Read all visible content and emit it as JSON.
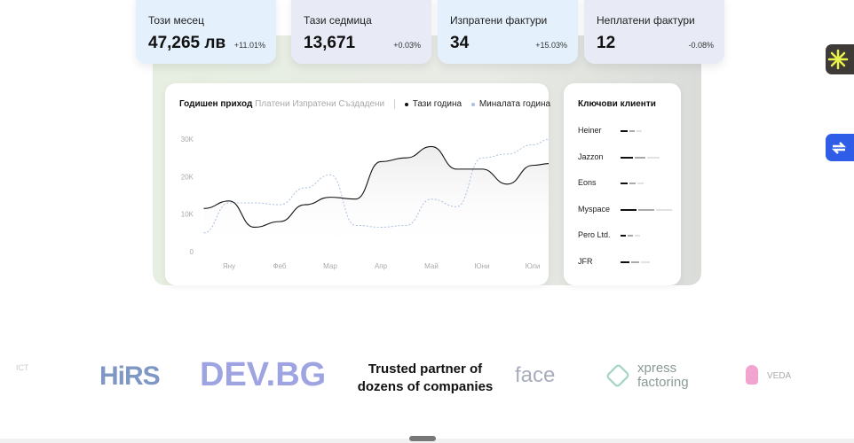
{
  "stats": [
    {
      "label": "Този месец",
      "value": "47,265 лв",
      "change": "+11.01%",
      "bg": "#e4f1fd"
    },
    {
      "label": "Тази седмица",
      "value": "13,671",
      "change": "+0.03%",
      "bg": "#e8ebf5"
    },
    {
      "label": "Изпратени фактури",
      "value": "34",
      "change": "+15.03%",
      "bg": "#e4f1fd"
    },
    {
      "label": "Неплатени фактури",
      "value": "12",
      "change": "-0.08%",
      "bg": "#e8ebf5"
    }
  ],
  "chart": {
    "title": "Годишен приход",
    "filters": [
      "Платени",
      "Изпратени",
      "Създадени"
    ],
    "legend": [
      {
        "label": "Тази година",
        "color": "#111111"
      },
      {
        "label": "Миналата година",
        "color": "#a9c0e0"
      }
    ]
  },
  "chart_data": {
    "type": "line",
    "categories": [
      "Яну",
      "Феб",
      "Мар",
      "Апр",
      "Май",
      "Юни",
      "Юли"
    ],
    "yticks": [
      "0",
      "10K",
      "20K",
      "30K"
    ],
    "ylim": [
      0,
      30
    ],
    "x": [
      -0.5,
      0,
      0.5,
      1,
      1.5,
      2,
      2.5,
      3,
      3.5,
      4,
      4.5,
      5,
      5.5,
      6,
      6.35
    ],
    "series": [
      {
        "name": "Тази година",
        "values": [
          11.5,
          13.5,
          6.5,
          8,
          12.5,
          14.5,
          14,
          24,
          25,
          28,
          22,
          22,
          18,
          23,
          23.5
        ]
      },
      {
        "name": "Миналата година",
        "values": [
          5,
          13,
          13,
          12.5,
          17,
          20.5,
          7,
          6.5,
          7,
          14,
          12,
          25,
          26,
          28.5,
          30
        ]
      }
    ]
  },
  "clients": {
    "title": "Ключови клиенти",
    "items": [
      {
        "name": "Heiner",
        "bars": [
          8,
          6,
          6
        ]
      },
      {
        "name": "Jazzon",
        "bars": [
          14,
          12,
          14
        ]
      },
      {
        "name": "Eons",
        "bars": [
          8,
          7,
          7
        ]
      },
      {
        "name": "Myspace",
        "bars": [
          18,
          18,
          18
        ]
      },
      {
        "name": "Pero Ltd.",
        "bars": [
          6,
          6,
          6
        ]
      },
      {
        "name": "JFR",
        "bars": [
          10,
          9,
          10
        ]
      }
    ]
  },
  "partners": {
    "tagline_1": "Trusted partner of",
    "tagline_2": "dozens of companies",
    "logos": [
      "HiRS",
      "DEV.BG",
      "face",
      "xpress",
      "factoring",
      "VEDA",
      "ICT"
    ]
  },
  "icons": [
    "asterisk-app-icon",
    "sync-icon"
  ]
}
